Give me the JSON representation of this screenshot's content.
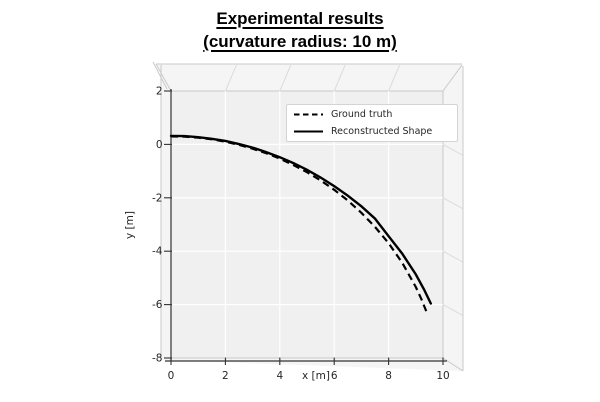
{
  "chart_data": {
    "type": "line",
    "title": "Experimental results",
    "subtitle": "(curvature radius: 10 m)",
    "xlabel": "x [m]",
    "ylabel": "y [m]",
    "xlim": [
      0,
      10
    ],
    "ylim": [
      -8,
      2
    ],
    "xticks": [
      0,
      2,
      4,
      6,
      8,
      10
    ],
    "yticks": [
      2,
      0,
      -2,
      -4,
      -6,
      -8
    ],
    "grid": true,
    "projection": "3d-box",
    "legend": {
      "position": "upper right",
      "entries": [
        {
          "label": "Ground truth",
          "line": "dashed"
        },
        {
          "label": "Reconstructed Shape",
          "line": "solid"
        }
      ]
    },
    "series": [
      {
        "name": "Ground truth",
        "line": "dashed",
        "color": "#000000",
        "points": [
          [
            0,
            0.3
          ],
          [
            0.5,
            0.29
          ],
          [
            1,
            0.25
          ],
          [
            1.5,
            0.19
          ],
          [
            2,
            0.1
          ],
          [
            2.5,
            -0.02
          ],
          [
            3,
            -0.16
          ],
          [
            3.5,
            -0.33
          ],
          [
            4,
            -0.53
          ],
          [
            4.5,
            -0.77
          ],
          [
            5,
            -1.04
          ],
          [
            5.5,
            -1.35
          ],
          [
            6,
            -1.7
          ],
          [
            6.5,
            -2.1
          ],
          [
            7,
            -2.56
          ],
          [
            7.5,
            -3.09
          ],
          [
            8,
            -3.7
          ],
          [
            8.5,
            -4.43
          ],
          [
            9,
            -5.34
          ],
          [
            9.2,
            -5.78
          ],
          [
            9.4,
            -6.29
          ]
        ]
      },
      {
        "name": "Reconstructed Shape",
        "line": "solid",
        "color": "#000000",
        "points": [
          [
            0,
            0.32
          ],
          [
            0.5,
            0.31
          ],
          [
            1,
            0.27
          ],
          [
            1.5,
            0.21
          ],
          [
            2,
            0.13
          ],
          [
            2.5,
            0.01
          ],
          [
            3,
            -0.12
          ],
          [
            3.5,
            -0.29
          ],
          [
            4,
            -0.48
          ],
          [
            4.5,
            -0.7
          ],
          [
            5,
            -0.95
          ],
          [
            5.5,
            -1.24
          ],
          [
            6,
            -1.56
          ],
          [
            6.5,
            -1.92
          ],
          [
            7,
            -2.32
          ],
          [
            7.5,
            -2.78
          ],
          [
            8,
            -3.44
          ],
          [
            8.5,
            -4.09
          ],
          [
            9,
            -4.87
          ],
          [
            9.3,
            -5.43
          ],
          [
            9.55,
            -5.96
          ]
        ]
      }
    ]
  },
  "colors": {
    "curve": "#000000",
    "pane": "#f0f0f0",
    "band": "#f5f5f5",
    "grid": "#ffffff",
    "band_grid": "#dcdcdc",
    "edge": "#c9c9c9",
    "spine": "#333333",
    "tick_text": "#262626",
    "legend_border": "#d4d4d4"
  }
}
